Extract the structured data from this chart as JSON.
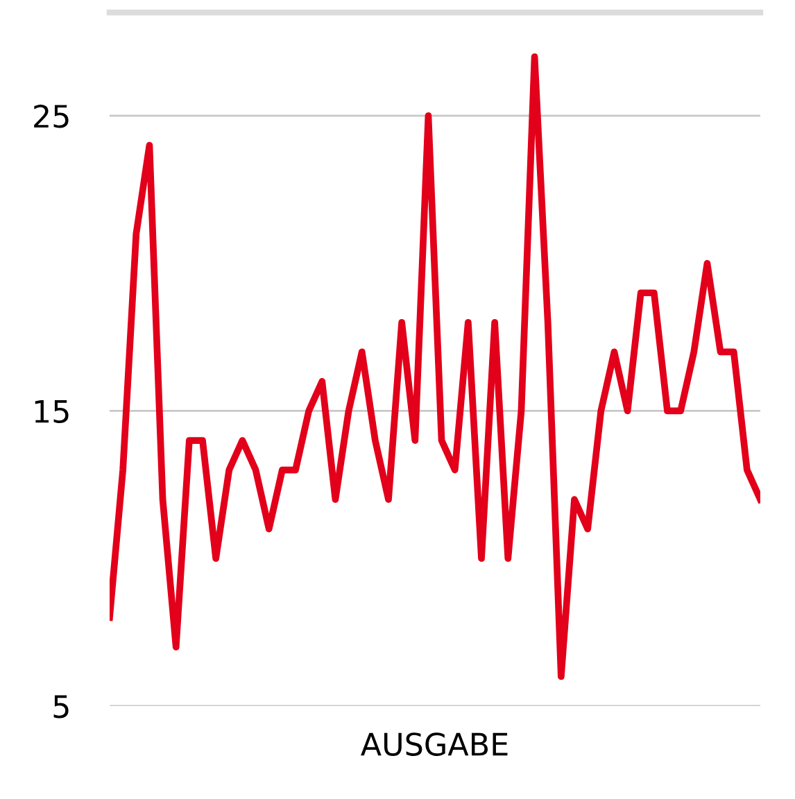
{
  "chart_data": {
    "type": "line",
    "xlabel": "AUSGABE",
    "categories": [
      null,
      null,
      null,
      null,
      null,
      null,
      null,
      null,
      null,
      null,
      null,
      null,
      null,
      null,
      null,
      null,
      null,
      null,
      null,
      null,
      null,
      null,
      null,
      null,
      null,
      null,
      null,
      null,
      null,
      null,
      null,
      null,
      null,
      null,
      null,
      null,
      null,
      null,
      null,
      null,
      null,
      null,
      null,
      null,
      null,
      null,
      null,
      null,
      null,
      null
    ],
    "series": [
      {
        "color": "#e2001a",
        "values": [
          8,
          13,
          21,
          24,
          12,
          7,
          14,
          14,
          10,
          13,
          14,
          13,
          11,
          13,
          13,
          15,
          16,
          12,
          15,
          17,
          14,
          12,
          18,
          14,
          25,
          14,
          13,
          18,
          10,
          18,
          10,
          15,
          27,
          18,
          6,
          12,
          11,
          15,
          17,
          15,
          19,
          19,
          15,
          15,
          17,
          20,
          17,
          17,
          13,
          12
        ]
      }
    ],
    "ylim": [
      5,
      28.5
    ],
    "yticks": [
      5,
      15,
      25
    ],
    "grid": "y",
    "marker": "none",
    "line_style": "solid",
    "legend": false
  }
}
